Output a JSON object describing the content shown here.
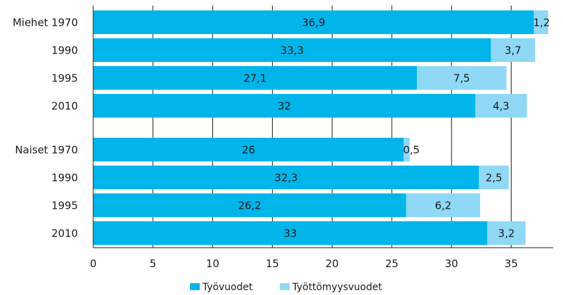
{
  "chart_data": {
    "type": "bar",
    "orientation": "horizontal",
    "stacked": true,
    "categories": [
      "Miehet 1970",
      "1990",
      "1995",
      "2010",
      "Naiset 1970",
      "1990",
      "1995",
      "2010"
    ],
    "groups": [
      {
        "name": "Miehet",
        "category_indices": [
          0,
          1,
          2,
          3
        ]
      },
      {
        "name": "Naiset",
        "category_indices": [
          4,
          5,
          6,
          7
        ]
      }
    ],
    "series": [
      {
        "name": "Työvuodet",
        "color": "#00b5ea",
        "values": [
          36.9,
          33.3,
          27.1,
          32,
          26,
          32.3,
          26.2,
          33
        ],
        "labels": [
          "36,9",
          "33,3",
          "27,1",
          "32",
          "26",
          "32,3",
          "26,2",
          "33"
        ]
      },
      {
        "name": "Työttömyysvuodet",
        "color": "#8fd8f6",
        "values": [
          1.2,
          3.7,
          7.5,
          4.3,
          0.5,
          2.5,
          6.2,
          3.2
        ],
        "labels": [
          "1,2",
          "3,7",
          "7,5",
          "4,3",
          "0,5",
          "2,5",
          "6,2",
          "3,2"
        ]
      }
    ],
    "x_ticks": [
      "0",
      "5",
      "10",
      "15",
      "20",
      "25",
      "30",
      "35"
    ],
    "xlim": [
      0,
      38
    ],
    "grid": "vertical",
    "legend_position": "bottom-center"
  }
}
